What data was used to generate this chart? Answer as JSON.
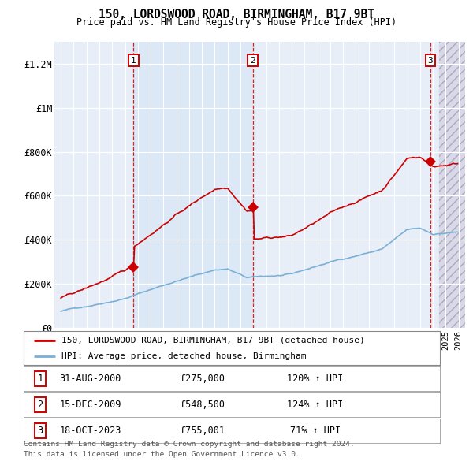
{
  "title": "150, LORDSWOOD ROAD, BIRMINGHAM, B17 9BT",
  "subtitle": "Price paid vs. HM Land Registry's House Price Index (HPI)",
  "legend_label_red": "150, LORDSWOOD ROAD, BIRMINGHAM, B17 9BT (detached house)",
  "legend_label_blue": "HPI: Average price, detached house, Birmingham",
  "footer_line1": "Contains HM Land Registry data © Crown copyright and database right 2024.",
  "footer_line2": "This data is licensed under the Open Government Licence v3.0.",
  "transactions": [
    {
      "num": 1,
      "date": "31-AUG-2000",
      "price": 275000,
      "year": 2000.67,
      "pct": "120%",
      "dir": "↑"
    },
    {
      "num": 2,
      "date": "15-DEC-2009",
      "price": 548500,
      "year": 2009.96,
      "pct": "124%",
      "dir": "↑"
    },
    {
      "num": 3,
      "date": "18-OCT-2023",
      "price": 755001,
      "year": 2023.8,
      "pct": "71%",
      "dir": "↑"
    }
  ],
  "ylim": [
    0,
    1300000
  ],
  "yticks": [
    0,
    200000,
    400000,
    600000,
    800000,
    1000000,
    1200000
  ],
  "ytick_labels": [
    "£0",
    "£200K",
    "£400K",
    "£600K",
    "£800K",
    "£1M",
    "£1.2M"
  ],
  "xlim_start": 1994.5,
  "xlim_end": 2026.5,
  "shade_color": "#dce8f5",
  "background_color": "#e8eef8",
  "plot_bg_color": "#e8eef8",
  "grid_color": "#ffffff",
  "red_line_color": "#cc0000",
  "blue_line_color": "#7ab0d4",
  "hatch_color": "#ccccdd",
  "trans1_year": 2000.67,
  "trans2_year": 2009.96,
  "trans3_year": 2023.8
}
